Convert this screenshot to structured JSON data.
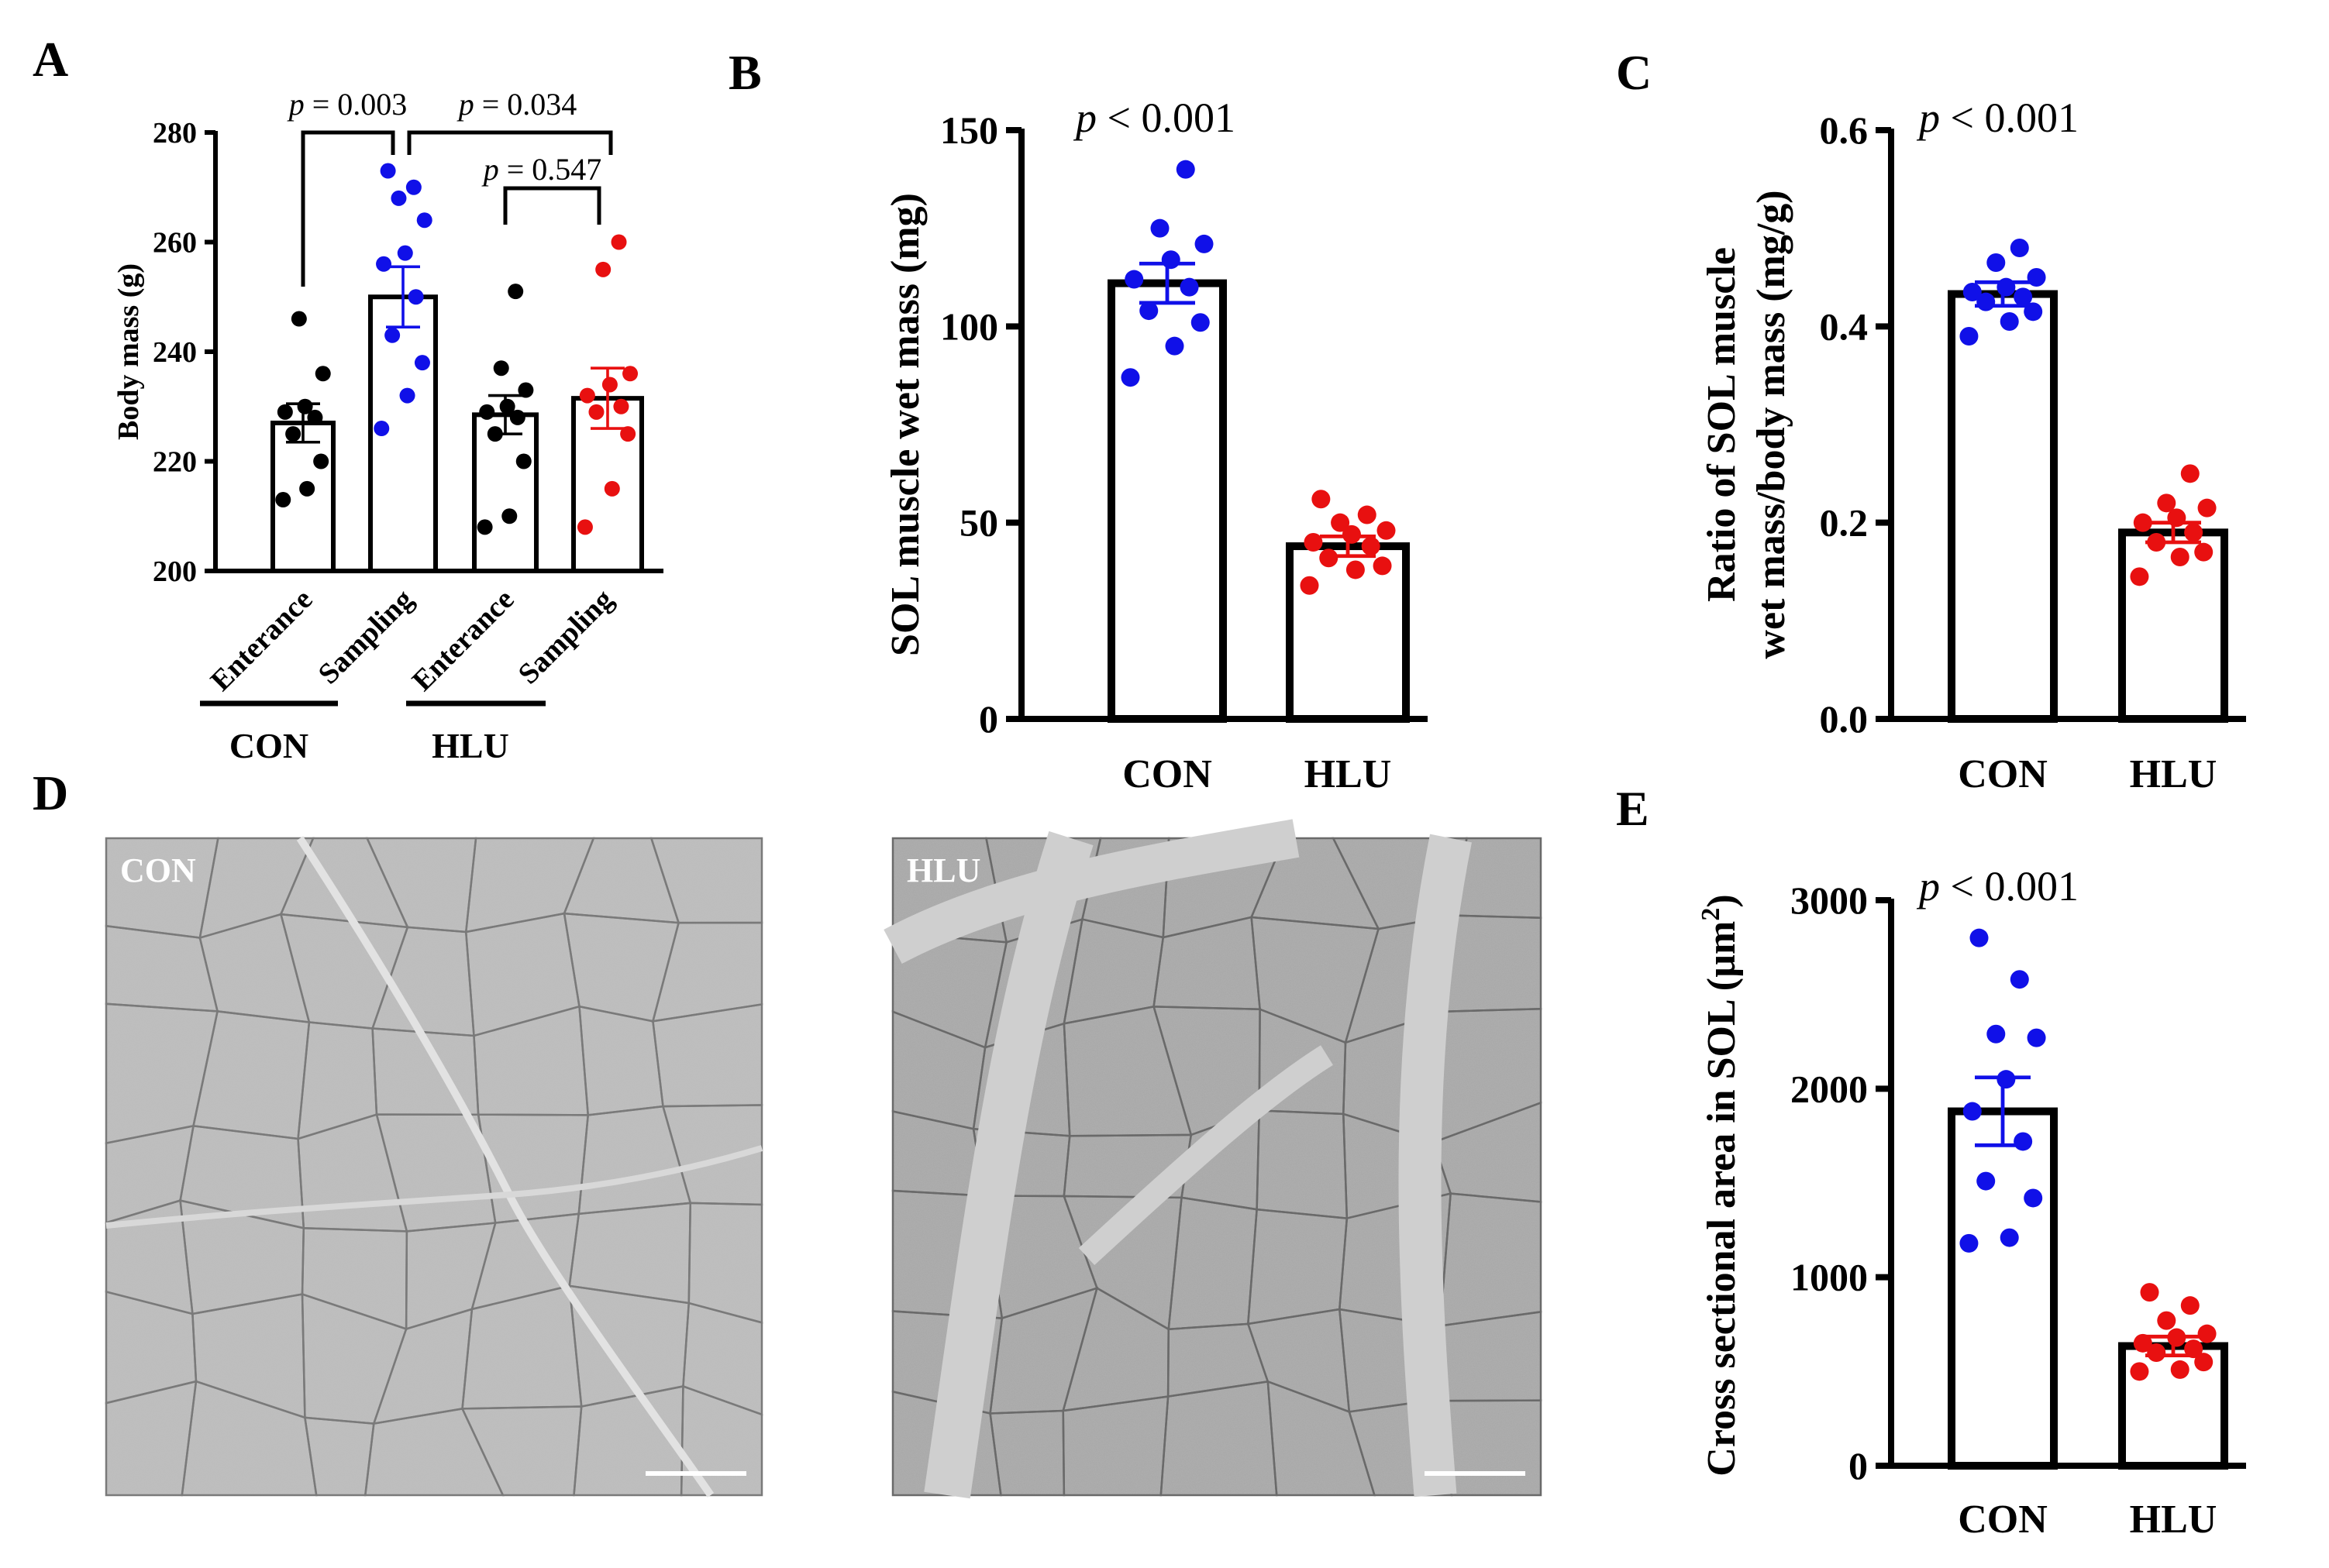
{
  "colors": {
    "blue": "#1010e8",
    "red": "#e81010",
    "black": "#000000",
    "white": "#ffffff"
  },
  "chart_data": [
    {
      "panel": "A",
      "type": "bar",
      "ylabel": "Body mass (g)",
      "ylim": [
        200,
        280
      ],
      "yticks": [
        200,
        220,
        240,
        260,
        280
      ],
      "categories": [
        "Enterance",
        "Sampling",
        "Enterance",
        "Sampling"
      ],
      "groups": [
        "CON",
        "HLU"
      ],
      "means": [
        227,
        250,
        228.5,
        231.5
      ],
      "sem": [
        3.5,
        5.5,
        3.5,
        5.5
      ],
      "point_colors": [
        "black",
        "blue",
        "black",
        "red"
      ],
      "points": [
        [
          213,
          215,
          220,
          225,
          228,
          229,
          230,
          236,
          246
        ],
        [
          226,
          232,
          238,
          243,
          250,
          256,
          258,
          264,
          268,
          270,
          273
        ],
        [
          208,
          210,
          220,
          225,
          228,
          229,
          230,
          233,
          237,
          251
        ],
        [
          208,
          215,
          225,
          229,
          230,
          232,
          234,
          236,
          255,
          260
        ]
      ],
      "comparisons": [
        {
          "label": "p = 0.003",
          "from": 0,
          "to": 1
        },
        {
          "label": "p = 0.034",
          "from": 1,
          "to": 3
        },
        {
          "label": "p = 0.547",
          "from": 2,
          "to": 3
        }
      ]
    },
    {
      "panel": "B",
      "type": "bar",
      "ylabel": "SOL muscle wet mass (mg)",
      "ylim": [
        0,
        150
      ],
      "yticks": [
        0,
        50,
        100,
        150
      ],
      "categories": [
        "CON",
        "HLU"
      ],
      "means": [
        111,
        44
      ],
      "sem": [
        5,
        2.5
      ],
      "point_colors": [
        "blue",
        "red"
      ],
      "points": [
        [
          87,
          95,
          101,
          104,
          110,
          112,
          117,
          121,
          125,
          140
        ],
        [
          34,
          38,
          39,
          41,
          44,
          45,
          47,
          48,
          50,
          52,
          56
        ]
      ],
      "pvalue": "p < 0.001"
    },
    {
      "panel": "C",
      "type": "bar",
      "ylabel_lines": [
        "Ratio of  SOL muscle",
        "wet mass/body mass (mg/g)"
      ],
      "ylim": [
        0,
        0.6
      ],
      "yticks": [
        "0.0",
        "0.2",
        "0.4",
        "0.6"
      ],
      "categories": [
        "CON",
        "HLU"
      ],
      "means": [
        0.433,
        0.19
      ],
      "sem": [
        0.012,
        0.01
      ],
      "point_colors": [
        "blue",
        "red"
      ],
      "points": [
        [
          0.39,
          0.405,
          0.415,
          0.425,
          0.43,
          0.435,
          0.44,
          0.45,
          0.465,
          0.48
        ],
        [
          0.145,
          0.165,
          0.17,
          0.18,
          0.19,
          0.2,
          0.205,
          0.215,
          0.22,
          0.25
        ]
      ],
      "pvalue": "p < 0.001"
    },
    {
      "panel": "E",
      "type": "bar",
      "ylabel": "Cross sectional area in SOL (µm",
      "ylabel_sup": "2",
      "ylabel_end": ")",
      "ylim": [
        0,
        3000
      ],
      "yticks": [
        0,
        1000,
        2000,
        3000
      ],
      "categories": [
        "CON",
        "HLU"
      ],
      "means": [
        1880,
        635
      ],
      "sem": [
        180,
        50
      ],
      "point_colors": [
        "blue",
        "red"
      ],
      "points": [
        [
          1180,
          1210,
          1420,
          1510,
          1720,
          1880,
          2050,
          2270,
          2290,
          2580,
          2800
        ],
        [
          500,
          510,
          550,
          600,
          620,
          650,
          680,
          700,
          770,
          850,
          920
        ]
      ],
      "pvalue": "p < 0.001"
    }
  ],
  "panel_D": {
    "letter": "D",
    "images": [
      {
        "label": "CON",
        "depicts": "micrograph-con"
      },
      {
        "label": "HLU",
        "depicts": "micrograph-hlu"
      }
    ]
  }
}
